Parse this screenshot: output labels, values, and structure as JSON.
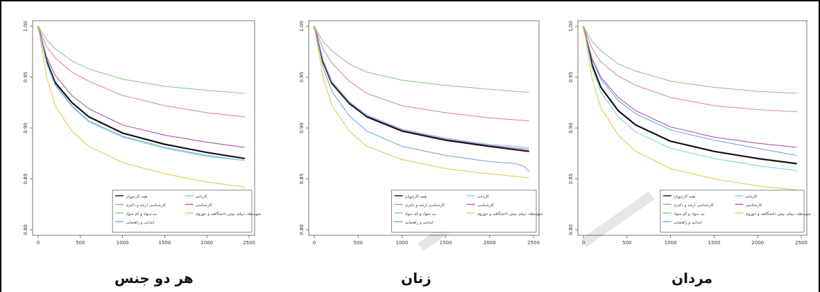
{
  "captions": {
    "both": "هر دو جنس",
    "women": "زنان",
    "men": "مردان"
  },
  "chart_data": [
    {
      "type": "line",
      "title": "هر دو جنس",
      "xlim": [
        0,
        2500
      ],
      "ylim": [
        0.8,
        1.0
      ],
      "xticks": [
        0,
        500,
        1000,
        1500,
        2000,
        2500
      ],
      "yticks": [
        "0.80",
        "0.85",
        "0.90",
        "0.95",
        "1.00"
      ],
      "legend_position": "bottom-right",
      "legend_columns": [
        [
          "همه کارجویان",
          "کارشناسی ارشد و دکتری",
          "بی سواد و کم سواد",
          "ابتدایی و راهنمایی"
        ],
        [
          "کاردانی",
          "کارشناسی",
          "متوسطه، دیپلم، پیش دانشگاهی و حوزوی"
        ]
      ],
      "series": [
        {
          "name": "همه کارجویان",
          "color": "#111111",
          "x": [
            0,
            100,
            200,
            400,
            600,
            1000,
            1500,
            2000,
            2450
          ],
          "y": [
            1.0,
            0.966,
            0.945,
            0.925,
            0.911,
            0.895,
            0.884,
            0.876,
            0.87
          ]
        },
        {
          "name": "کارشناسی ارشد و دکتری",
          "color": "#d98aa2",
          "x": [
            0,
            100,
            200,
            400,
            600,
            1000,
            1500,
            2000,
            2450
          ],
          "y": [
            1.0,
            0.98,
            0.969,
            0.955,
            0.946,
            0.932,
            0.922,
            0.915,
            0.911
          ]
        },
        {
          "name": "بی سواد و کم سواد",
          "color": "#88c98a",
          "x": [
            0,
            100,
            200,
            400,
            600,
            1000,
            1500,
            2000,
            2450
          ],
          "y": [
            1.0,
            0.987,
            0.978,
            0.966,
            0.958,
            0.948,
            0.941,
            0.937,
            0.934
          ]
        },
        {
          "name": "ابتدایی و راهنمایی",
          "color": "#6fa5d8",
          "x": [
            0,
            100,
            200,
            400,
            600,
            1000,
            1500,
            2000,
            2450
          ],
          "y": [
            1.0,
            0.964,
            0.943,
            0.922,
            0.907,
            0.892,
            0.881,
            0.873,
            0.868
          ]
        },
        {
          "name": "کاردانی",
          "color": "#7fd6e0",
          "x": [
            0,
            100,
            200,
            400,
            600,
            1000,
            1500,
            2000,
            2450
          ],
          "y": [
            1.0,
            0.963,
            0.942,
            0.921,
            0.906,
            0.891,
            0.88,
            0.872,
            0.868
          ]
        },
        {
          "name": "کارشناسی",
          "color": "#a855a8",
          "x": [
            0,
            100,
            200,
            400,
            600,
            1000,
            1500,
            2000,
            2450
          ],
          "y": [
            1.0,
            0.97,
            0.952,
            0.932,
            0.919,
            0.903,
            0.893,
            0.886,
            0.881
          ]
        },
        {
          "name": "متوسطه، دیپلم، پیش دانشگاهی و حوزوی",
          "color": "#e3c94a",
          "x": [
            0,
            100,
            200,
            400,
            600,
            1000,
            1500,
            2000,
            2450
          ],
          "y": [
            1.0,
            0.95,
            0.922,
            0.897,
            0.882,
            0.866,
            0.855,
            0.847,
            0.842
          ]
        }
      ]
    },
    {
      "type": "line",
      "title": "زنان",
      "xlim": [
        0,
        2500
      ],
      "ylim": [
        0.8,
        1.0
      ],
      "xticks": [
        0,
        500,
        1000,
        1500,
        2000,
        2500
      ],
      "yticks": [
        "0.80",
        "0.85",
        "0.90",
        "0.95",
        "1.00"
      ],
      "legend_position": "bottom-right",
      "legend_columns": [
        [
          "همه کارجویان",
          "کارشناسی ارشد و دکتری",
          "بی سواد و کم سواد",
          "ابتدایی و راهنمایی"
        ],
        [
          "کاردانی",
          "کارشناسی",
          "متوسطه، دیپلم، پیش دانشگاهی و حوزوی"
        ]
      ],
      "series": [
        {
          "name": "همه کارجویان",
          "color": "#111111",
          "x": [
            0,
            100,
            200,
            400,
            600,
            1000,
            1500,
            2000,
            2450
          ],
          "y": [
            1.0,
            0.965,
            0.944,
            0.924,
            0.911,
            0.897,
            0.888,
            0.882,
            0.877
          ]
        },
        {
          "name": "کارشناسی ارشد و دکتری",
          "color": "#d98aa2",
          "x": [
            0,
            100,
            200,
            400,
            600,
            1000,
            1500,
            2000,
            2450
          ],
          "y": [
            1.0,
            0.978,
            0.964,
            0.946,
            0.934,
            0.922,
            0.915,
            0.91,
            0.907
          ]
        },
        {
          "name": "بی سواد و کم سواد",
          "color": "#88c98a",
          "x": [
            0,
            100,
            200,
            400,
            600,
            1000,
            1500,
            2000,
            2450
          ],
          "y": [
            1.0,
            0.985,
            0.976,
            0.963,
            0.955,
            0.947,
            0.942,
            0.938,
            0.935
          ]
        },
        {
          "name": "ابتدایی و راهنمایی",
          "color": "#6fa5d8",
          "x": [
            0,
            100,
            200,
            400,
            600,
            1000,
            1500,
            2000,
            2300,
            2400,
            2450
          ],
          "y": [
            1.0,
            0.96,
            0.936,
            0.912,
            0.897,
            0.882,
            0.873,
            0.867,
            0.865,
            0.862,
            0.857
          ]
        },
        {
          "name": "کاردانی",
          "color": "#7fd6e0",
          "x": [
            0,
            100,
            200,
            400,
            600,
            1000,
            1500,
            2000,
            2450
          ],
          "y": [
            1.0,
            0.967,
            0.946,
            0.926,
            0.913,
            0.899,
            0.89,
            0.884,
            0.881
          ]
        },
        {
          "name": "کارشناسی",
          "color": "#a855a8",
          "x": [
            0,
            100,
            200,
            400,
            600,
            1000,
            1500,
            2000,
            2450
          ],
          "y": [
            1.0,
            0.966,
            0.945,
            0.925,
            0.912,
            0.898,
            0.889,
            0.883,
            0.879
          ]
        },
        {
          "name": "متوسطه، دیپلم، پیش دانشگاهی و حوزوی",
          "color": "#e3c94a",
          "x": [
            0,
            100,
            200,
            400,
            600,
            1000,
            1500,
            2000,
            2450
          ],
          "y": [
            1.0,
            0.95,
            0.922,
            0.897,
            0.882,
            0.869,
            0.86,
            0.855,
            0.851
          ]
        }
      ]
    },
    {
      "type": "line",
      "title": "مردان",
      "xlim": [
        0,
        2500
      ],
      "ylim": [
        0.8,
        1.0
      ],
      "xticks": [
        0,
        500,
        1000,
        1500,
        2000,
        2500
      ],
      "yticks": [
        "0.80",
        "0.85",
        "0.90",
        "0.95",
        "1.00"
      ],
      "legend_position": "bottom-right",
      "legend_columns": [
        [
          "همه کارجویان",
          "کارشناسی ارشد و دکتری",
          "بی سواد و کم سواد",
          "ابتدایی و راهنمایی"
        ],
        [
          "کاردانی",
          "کارشناسی",
          "متوسطه، دیپلم، پیش دانشگاهی و حوزوی"
        ]
      ],
      "series": [
        {
          "name": "همه کارجویان",
          "color": "#111111",
          "x": [
            0,
            100,
            200,
            400,
            600,
            1000,
            1500,
            2000,
            2450
          ],
          "y": [
            1.0,
            0.962,
            0.94,
            0.917,
            0.903,
            0.887,
            0.877,
            0.87,
            0.865
          ]
        },
        {
          "name": "کارشناسی ارشد و دکتری",
          "color": "#d98aa2",
          "x": [
            0,
            100,
            200,
            400,
            600,
            1000,
            1500,
            2000,
            2450
          ],
          "y": [
            1.0,
            0.978,
            0.965,
            0.951,
            0.942,
            0.93,
            0.922,
            0.918,
            0.916
          ]
        },
        {
          "name": "بی سواد و کم سواد",
          "color": "#88c98a",
          "x": [
            0,
            100,
            200,
            400,
            600,
            1000,
            1500,
            2000,
            2450
          ],
          "y": [
            1.0,
            0.985,
            0.976,
            0.963,
            0.956,
            0.946,
            0.94,
            0.936,
            0.934
          ]
        },
        {
          "name": "ابتدایی و راهنمایی",
          "color": "#6fa5d8",
          "x": [
            0,
            100,
            200,
            400,
            600,
            1000,
            1500,
            2000,
            2450
          ],
          "y": [
            1.0,
            0.967,
            0.948,
            0.927,
            0.914,
            0.898,
            0.888,
            0.88,
            0.873
          ]
        },
        {
          "name": "کاردانی",
          "color": "#7fd6e0",
          "x": [
            0,
            100,
            200,
            400,
            600,
            1000,
            1500,
            2000,
            2450
          ],
          "y": [
            1.0,
            0.958,
            0.935,
            0.911,
            0.896,
            0.88,
            0.87,
            0.863,
            0.858
          ]
        },
        {
          "name": "کارشناسی",
          "color": "#a855a8",
          "x": [
            0,
            100,
            200,
            400,
            600,
            1000,
            1500,
            2000,
            2450
          ],
          "y": [
            1.0,
            0.968,
            0.95,
            0.93,
            0.917,
            0.901,
            0.891,
            0.885,
            0.881
          ]
        },
        {
          "name": "متوسطه، دیپلم، پیش دانشگاهی و حوزوی",
          "color": "#e3c94a",
          "x": [
            0,
            100,
            200,
            400,
            600,
            1000,
            1500,
            2000,
            2450
          ],
          "y": [
            1.0,
            0.948,
            0.92,
            0.893,
            0.877,
            0.86,
            0.85,
            0.843,
            0.839
          ]
        }
      ]
    }
  ]
}
